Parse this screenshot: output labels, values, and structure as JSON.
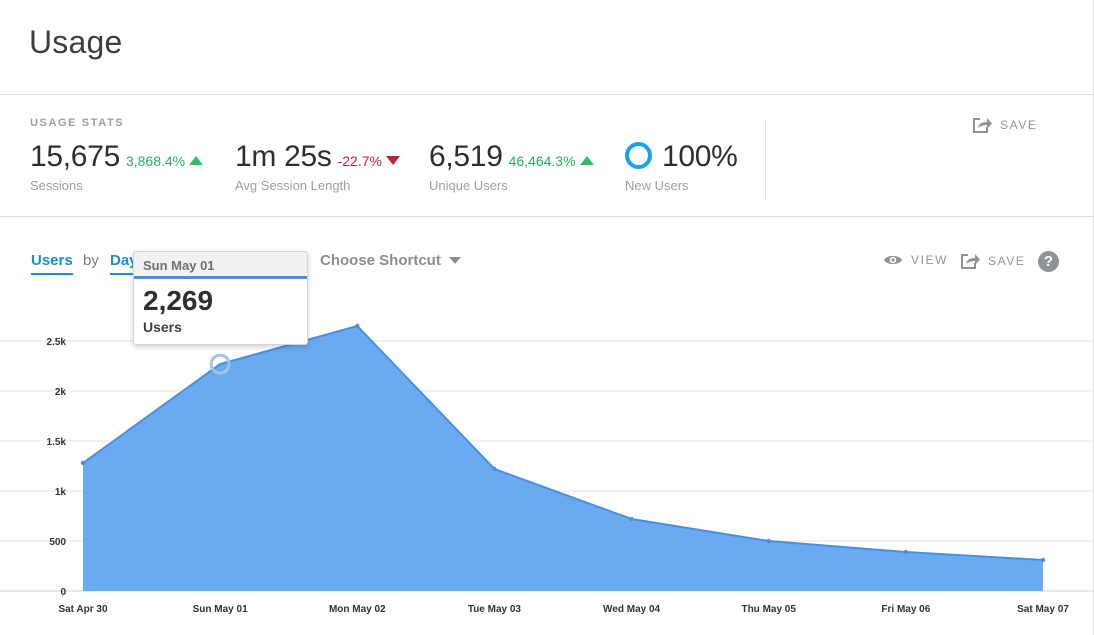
{
  "page": {
    "title": "Usage"
  },
  "usage_stats": {
    "heading": "USAGE STATS",
    "save_label": "SAVE",
    "stats": [
      {
        "value": "15,675",
        "change": "3,868.4%",
        "direction": "up",
        "label": "Sessions"
      },
      {
        "value": "1m 25s",
        "change": "-22.7%",
        "direction": "down",
        "label": "Avg Session Length"
      },
      {
        "value": "6,519",
        "change": "46,464.3%",
        "direction": "up",
        "label": "Unique Users"
      },
      {
        "value": "100%",
        "label": "New Users"
      }
    ]
  },
  "chart_controls": {
    "metric": "Users",
    "by": "by",
    "interval": "Day",
    "shortcut": "Choose Shortcut",
    "view_label": "VIEW",
    "save_label": "SAVE",
    "help": "?"
  },
  "tooltip": {
    "date": "Sun May 01",
    "value": "2,269",
    "series": "Users"
  },
  "colors": {
    "accent": "#1a8fd6",
    "area_fill": "#6aaaf0",
    "area_line": "#4a90e2",
    "up": "#27ae60",
    "down": "#c0213a"
  },
  "chart_data": {
    "type": "area",
    "categories": [
      "Sat Apr 30",
      "Sun May 01",
      "Mon May 02",
      "Tue May 03",
      "Wed May 04",
      "Thu May 05",
      "Fri May 06",
      "Sat May 07"
    ],
    "series": [
      {
        "name": "Users",
        "values": [
          1280,
          2269,
          2650,
          1220,
          720,
          500,
          390,
          310
        ]
      }
    ],
    "y_ticks": [
      "0",
      "500",
      "1k",
      "1.5k",
      "2k",
      "2.5k"
    ],
    "ylim": [
      0,
      2700
    ],
    "grid": true,
    "highlighted_index": 1
  }
}
